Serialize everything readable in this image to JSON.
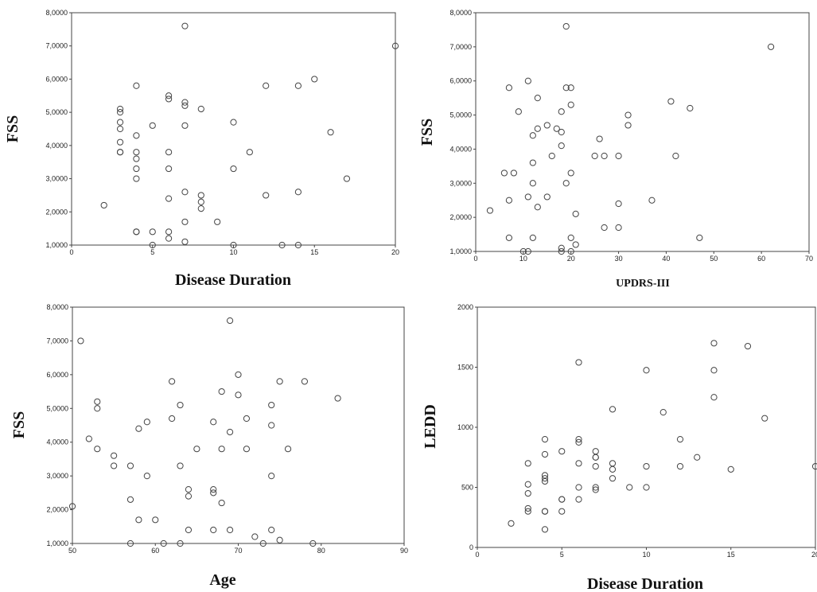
{
  "chart_data": [
    {
      "type": "scatter",
      "xlabel": "Disease Duration",
      "ylabel": "FSS",
      "xlim": [
        0,
        20
      ],
      "ylim": [
        1,
        8
      ],
      "xticks": [
        "0",
        "5",
        "10",
        "15",
        "20"
      ],
      "yticks": [
        "1,0000",
        "2,0000",
        "3,0000",
        "4,0000",
        "5,0000",
        "6,0000",
        "7,0000",
        "8,0000"
      ],
      "grid": false,
      "points": [
        [
          2,
          2.2
        ],
        [
          3,
          5.1
        ],
        [
          3,
          5.0
        ],
        [
          3,
          4.7
        ],
        [
          3,
          4.5
        ],
        [
          3,
          4.1
        ],
        [
          3,
          3.8
        ],
        [
          3,
          3.8
        ],
        [
          4,
          5.8
        ],
        [
          4,
          4.3
        ],
        [
          4,
          3.8
        ],
        [
          4,
          3.6
        ],
        [
          4,
          3.3
        ],
        [
          4,
          3.0
        ],
        [
          4,
          1.4
        ],
        [
          4,
          1.4
        ],
        [
          5,
          4.6
        ],
        [
          5,
          1.4
        ],
        [
          5,
          1.0
        ],
        [
          6,
          5.5
        ],
        [
          6,
          5.4
        ],
        [
          6,
          3.8
        ],
        [
          6,
          3.3
        ],
        [
          6,
          2.4
        ],
        [
          6,
          1.4
        ],
        [
          6,
          1.2
        ],
        [
          7,
          7.6
        ],
        [
          7,
          5.3
        ],
        [
          7,
          5.2
        ],
        [
          7,
          4.6
        ],
        [
          7,
          2.6
        ],
        [
          7,
          1.7
        ],
        [
          7,
          1.1
        ],
        [
          8,
          5.1
        ],
        [
          8,
          2.5
        ],
        [
          8,
          2.3
        ],
        [
          8,
          2.1
        ],
        [
          9,
          1.7
        ],
        [
          10,
          4.7
        ],
        [
          10,
          3.3
        ],
        [
          10,
          1.0
        ],
        [
          11,
          3.8
        ],
        [
          12,
          5.8
        ],
        [
          12,
          2.5
        ],
        [
          13,
          1.0
        ],
        [
          14,
          5.8
        ],
        [
          14,
          2.6
        ],
        [
          14,
          1.0
        ],
        [
          15,
          6.0
        ],
        [
          16,
          4.4
        ],
        [
          17,
          3.0
        ],
        [
          20,
          7.0
        ]
      ]
    },
    {
      "type": "scatter",
      "xlabel": "UPDRS-III",
      "ylabel": "FSS",
      "xlim": [
        0,
        70
      ],
      "ylim": [
        1,
        8
      ],
      "xticks": [
        "0",
        "10",
        "20",
        "30",
        "40",
        "50",
        "60",
        "70"
      ],
      "yticks": [
        "1,0000",
        "2,0000",
        "3,0000",
        "4,0000",
        "5,0000",
        "6,0000",
        "7,0000",
        "8,0000"
      ],
      "grid": false,
      "points": [
        [
          3,
          2.2
        ],
        [
          6,
          3.3
        ],
        [
          7,
          5.8
        ],
        [
          7,
          2.5
        ],
        [
          7,
          1.4
        ],
        [
          8,
          3.3
        ],
        [
          9,
          5.1
        ],
        [
          10,
          1.0
        ],
        [
          11,
          1.0
        ],
        [
          11,
          6.0
        ],
        [
          11,
          2.6
        ],
        [
          12,
          4.4
        ],
        [
          12,
          3.6
        ],
        [
          12,
          3.0
        ],
        [
          12,
          1.4
        ],
        [
          13,
          5.5
        ],
        [
          13,
          4.6
        ],
        [
          13,
          2.3
        ],
        [
          15,
          4.7
        ],
        [
          15,
          2.6
        ],
        [
          16,
          3.8
        ],
        [
          17,
          4.6
        ],
        [
          18,
          5.1
        ],
        [
          18,
          4.5
        ],
        [
          18,
          4.1
        ],
        [
          18,
          1.1
        ],
        [
          18,
          1.0
        ],
        [
          19,
          7.6
        ],
        [
          19,
          5.8
        ],
        [
          19,
          3.0
        ],
        [
          20,
          5.8
        ],
        [
          20,
          5.3
        ],
        [
          20,
          3.3
        ],
        [
          20,
          1.4
        ],
        [
          20,
          1.0
        ],
        [
          21,
          2.1
        ],
        [
          21,
          1.2
        ],
        [
          25,
          3.8
        ],
        [
          26,
          4.3
        ],
        [
          27,
          3.8
        ],
        [
          27,
          1.7
        ],
        [
          30,
          3.8
        ],
        [
          30,
          2.4
        ],
        [
          30,
          1.7
        ],
        [
          32,
          5.0
        ],
        [
          32,
          4.7
        ],
        [
          37,
          2.5
        ],
        [
          41,
          5.4
        ],
        [
          42,
          3.8
        ],
        [
          45,
          5.2
        ],
        [
          47,
          1.4
        ],
        [
          62,
          7.0
        ]
      ]
    },
    {
      "type": "scatter",
      "xlabel": "Age",
      "ylabel": "FSS",
      "xlim": [
        50,
        90
      ],
      "ylim": [
        1,
        8
      ],
      "xticks": [
        "50",
        "60",
        "70",
        "80",
        "90"
      ],
      "yticks": [
        "1,0000",
        "2,0000",
        "3,0000",
        "4,0000",
        "5,0000",
        "6,0000",
        "7,0000",
        "8,0000"
      ],
      "grid": false,
      "points": [
        [
          50,
          2.1
        ],
        [
          51,
          7.0
        ],
        [
          52,
          4.1
        ],
        [
          53,
          5.2
        ],
        [
          53,
          5.0
        ],
        [
          53,
          3.8
        ],
        [
          55,
          3.6
        ],
        [
          55,
          3.3
        ],
        [
          57,
          3.3
        ],
        [
          57,
          2.3
        ],
        [
          57,
          1.0
        ],
        [
          58,
          4.4
        ],
        [
          58,
          1.7
        ],
        [
          59,
          4.6
        ],
        [
          59,
          3.0
        ],
        [
          60,
          1.7
        ],
        [
          61,
          1.0
        ],
        [
          62,
          5.8
        ],
        [
          62,
          4.7
        ],
        [
          63,
          5.1
        ],
        [
          63,
          3.3
        ],
        [
          63,
          1.0
        ],
        [
          64,
          2.6
        ],
        [
          64,
          2.4
        ],
        [
          64,
          1.4
        ],
        [
          65,
          3.8
        ],
        [
          67,
          4.6
        ],
        [
          67,
          2.6
        ],
        [
          67,
          2.5
        ],
        [
          67,
          1.4
        ],
        [
          68,
          5.5
        ],
        [
          68,
          3.8
        ],
        [
          68,
          2.2
        ],
        [
          69,
          7.6
        ],
        [
          69,
          4.3
        ],
        [
          69,
          1.4
        ],
        [
          70,
          6.0
        ],
        [
          70,
          5.4
        ],
        [
          71,
          4.7
        ],
        [
          71,
          3.8
        ],
        [
          72,
          1.2
        ],
        [
          73,
          1.0
        ],
        [
          74,
          5.1
        ],
        [
          74,
          4.5
        ],
        [
          74,
          3.0
        ],
        [
          74,
          1.4
        ],
        [
          75,
          5.8
        ],
        [
          75,
          1.1
        ],
        [
          76,
          3.8
        ],
        [
          78,
          5.8
        ],
        [
          79,
          1.0
        ],
        [
          82,
          5.3
        ]
      ]
    },
    {
      "type": "scatter",
      "xlabel": "Disease Duration",
      "ylabel": "LEDD",
      "xlim": [
        0,
        20
      ],
      "ylim": [
        0,
        2000
      ],
      "xticks": [
        "0",
        "5",
        "10",
        "15",
        "20"
      ],
      "yticks": [
        "0",
        "500",
        "1000",
        "1500",
        "2000"
      ],
      "grid": false,
      "points": [
        [
          2,
          200
        ],
        [
          3,
          700
        ],
        [
          3,
          525
        ],
        [
          3,
          450
        ],
        [
          3,
          325
        ],
        [
          3,
          300
        ],
        [
          4,
          900
        ],
        [
          4,
          775
        ],
        [
          4,
          600
        ],
        [
          4,
          575
        ],
        [
          4,
          550
        ],
        [
          4,
          300
        ],
        [
          4,
          300
        ],
        [
          4,
          150
        ],
        [
          5,
          800
        ],
        [
          5,
          400
        ],
        [
          5,
          400
        ],
        [
          5,
          300
        ],
        [
          6,
          1540
        ],
        [
          6,
          900
        ],
        [
          6,
          875
        ],
        [
          6,
          700
        ],
        [
          6,
          500
        ],
        [
          6,
          400
        ],
        [
          7,
          800
        ],
        [
          7,
          750
        ],
        [
          7,
          750
        ],
        [
          7,
          675
        ],
        [
          7,
          500
        ],
        [
          7,
          480
        ],
        [
          8,
          1150
        ],
        [
          8,
          700
        ],
        [
          8,
          650
        ],
        [
          8,
          575
        ],
        [
          9,
          500
        ],
        [
          10,
          1475
        ],
        [
          10,
          675
        ],
        [
          10,
          500
        ],
        [
          11,
          1125
        ],
        [
          12,
          900
        ],
        [
          12,
          675
        ],
        [
          13,
          750
        ],
        [
          14,
          1700
        ],
        [
          14,
          1475
        ],
        [
          14,
          1250
        ],
        [
          15,
          650
        ],
        [
          16,
          1675
        ],
        [
          17,
          1075
        ],
        [
          20,
          675
        ]
      ]
    }
  ]
}
